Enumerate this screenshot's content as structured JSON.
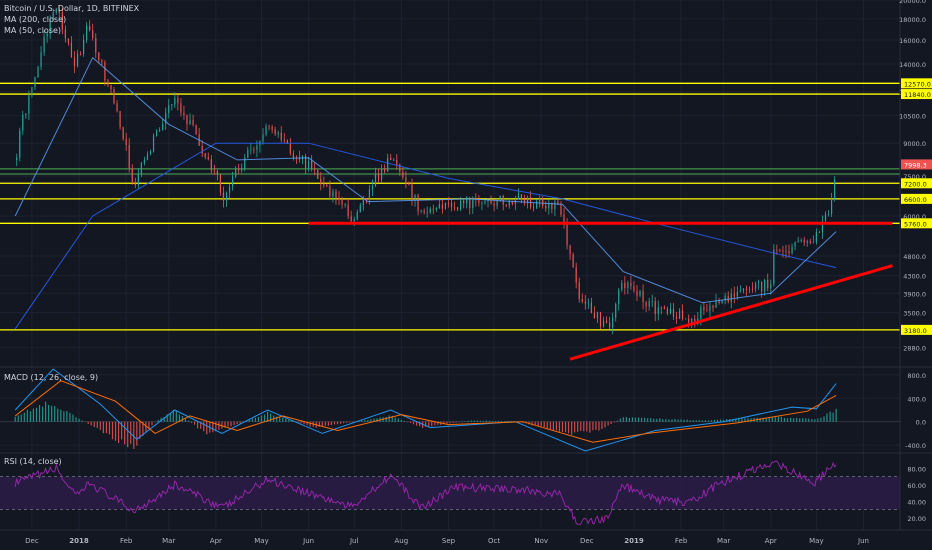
{
  "header": {
    "title": "Bitcoin / U.S. Dollar, 1D, BITFINEX",
    "ma200": "MA (200, close)",
    "ma50": "MA (50, close)",
    "macd": "MACD (12, 26, close, 9)",
    "rsi": "RSI (14, close)"
  },
  "colors": {
    "background": "#131722",
    "up": "#26a69a",
    "down": "#ef5350",
    "level": "#ffff00",
    "trend": "#ff0000",
    "green_level": "#4caf50",
    "ma": "#2962ff",
    "rsi_band": "#2a1c46",
    "rsi_line": "#9c27b0"
  },
  "chart_data": [
    {
      "type": "candlestick",
      "title": "Bitcoin / U.S. Dollar, 1D, BITFINEX",
      "scale": "log",
      "ylim": [
        2600,
        20000
      ],
      "y_ticks": [
        20000,
        18000,
        16000,
        14000,
        12000,
        10500,
        9000,
        7500,
        6000,
        4800,
        4300,
        3900,
        3500,
        2880
      ],
      "x_ticks": [
        "Dec",
        "2018",
        "Feb",
        "Mar",
        "Apr",
        "May",
        "Jun",
        "Jul",
        "Aug",
        "Sep",
        "Oct",
        "Nov",
        "Dec",
        "2019",
        "Feb",
        "Mar",
        "Apr",
        "May",
        "Jun"
      ],
      "price_keypoints": [
        {
          "date": "2017-11-20",
          "close": 8200
        },
        {
          "date": "2017-12-17",
          "close": 19000
        },
        {
          "date": "2017-12-29",
          "close": 13500
        },
        {
          "date": "2018-01-06",
          "close": 17000
        },
        {
          "date": "2018-02-06",
          "close": 7000
        },
        {
          "date": "2018-03-05",
          "close": 11500
        },
        {
          "date": "2018-04-06",
          "close": 6700
        },
        {
          "date": "2018-05-05",
          "close": 9800
        },
        {
          "date": "2018-06-29",
          "close": 5900
        },
        {
          "date": "2018-07-25",
          "close": 8200
        },
        {
          "date": "2018-08-14",
          "close": 6100
        },
        {
          "date": "2018-09-05",
          "close": 6400
        },
        {
          "date": "2018-10-15",
          "close": 6600
        },
        {
          "date": "2018-11-13",
          "close": 6300
        },
        {
          "date": "2018-11-25",
          "close": 3800
        },
        {
          "date": "2018-12-15",
          "close": 3200
        },
        {
          "date": "2018-12-24",
          "close": 4100
        },
        {
          "date": "2019-01-15",
          "close": 3600
        },
        {
          "date": "2019-02-07",
          "close": 3400
        },
        {
          "date": "2019-03-01",
          "close": 3800
        },
        {
          "date": "2019-04-01",
          "close": 4100
        },
        {
          "date": "2019-04-03",
          "close": 4900
        },
        {
          "date": "2019-04-30",
          "close": 5300
        },
        {
          "date": "2019-05-10",
          "close": 6300
        },
        {
          "date": "2019-05-14",
          "close": 7998.3
        }
      ],
      "price_labels": [
        {
          "value": 12570,
          "text": "12570.0",
          "kind": "level"
        },
        {
          "value": 11840,
          "text": "11840.0",
          "kind": "level"
        },
        {
          "value": 7998.3,
          "text": "7998.3",
          "kind": "last"
        },
        {
          "value": 7200,
          "text": "7200.0",
          "kind": "level"
        },
        {
          "value": 6600,
          "text": "6600.0",
          "kind": "level"
        },
        {
          "value": 5760,
          "text": "5760.0",
          "kind": "level"
        },
        {
          "value": 3180,
          "text": "3180.0",
          "kind": "level"
        }
      ],
      "horizontal_levels": [
        12570,
        11840,
        7200,
        6600,
        5760,
        3180
      ],
      "green_levels": [
        7800,
        7580
      ],
      "support_line": {
        "from": {
          "date": "2018-06-01",
          "value": 5760
        },
        "to": {
          "date": "2019-06-20",
          "value": 5760
        }
      },
      "trend_line": {
        "from": {
          "date": "2018-11-20",
          "value": 2700
        },
        "to": {
          "date": "2019-06-20",
          "value": 4550
        }
      },
      "ma200_keypoints": [
        {
          "date": "2017-11-20",
          "value": 3200
        },
        {
          "date": "2018-01-10",
          "value": 6000
        },
        {
          "date": "2018-04-01",
          "value": 9000
        },
        {
          "date": "2018-06-01",
          "value": 9000
        },
        {
          "date": "2018-09-01",
          "value": 7400
        },
        {
          "date": "2018-11-15",
          "value": 6600
        },
        {
          "date": "2019-01-20",
          "value": 5700
        },
        {
          "date": "2019-04-01",
          "value": 4900
        },
        {
          "date": "2019-05-14",
          "value": 4500
        }
      ],
      "ma50_keypoints": [
        {
          "date": "2017-11-20",
          "value": 6000
        },
        {
          "date": "2018-01-10",
          "value": 14500
        },
        {
          "date": "2018-03-01",
          "value": 10000
        },
        {
          "date": "2018-04-15",
          "value": 8200
        },
        {
          "date": "2018-06-01",
          "value": 8300
        },
        {
          "date": "2018-07-10",
          "value": 6500
        },
        {
          "date": "2018-09-15",
          "value": 6600
        },
        {
          "date": "2018-11-15",
          "value": 6400
        },
        {
          "date": "2018-12-25",
          "value": 4400
        },
        {
          "date": "2019-02-15",
          "value": 3700
        },
        {
          "date": "2019-04-01",
          "value": 3900
        },
        {
          "date": "2019-05-14",
          "value": 5500
        }
      ]
    },
    {
      "type": "histogram",
      "title": "MACD (12, 26, close, 9)",
      "ylim": [
        -500,
        900
      ],
      "y_ticks": [
        800.0,
        400.0,
        0.0,
        -400.0
      ],
      "y_tick_labels": [
        "800.0",
        "400.0",
        "0.0",
        "-400.0"
      ],
      "hist_keypoints": [
        {
          "date": "2017-11-20",
          "value": 100
        },
        {
          "date": "2017-12-10",
          "value": 300
        },
        {
          "date": "2017-12-25",
          "value": 150
        },
        {
          "date": "2018-01-15",
          "value": -150
        },
        {
          "date": "2018-02-05",
          "value": -450
        },
        {
          "date": "2018-02-20",
          "value": 0
        },
        {
          "date": "2018-03-05",
          "value": 200
        },
        {
          "date": "2018-03-25",
          "value": -200
        },
        {
          "date": "2018-04-15",
          "value": -50
        },
        {
          "date": "2018-05-05",
          "value": 150
        },
        {
          "date": "2018-06-05",
          "value": -100
        },
        {
          "date": "2018-07-01",
          "value": 0
        },
        {
          "date": "2018-07-25",
          "value": 100
        },
        {
          "date": "2018-08-15",
          "value": -100
        },
        {
          "date": "2018-09-15",
          "value": 20
        },
        {
          "date": "2018-10-15",
          "value": 10
        },
        {
          "date": "2018-11-20",
          "value": -200
        },
        {
          "date": "2018-12-10",
          "value": -150
        },
        {
          "date": "2018-12-25",
          "value": 80
        },
        {
          "date": "2019-02-15",
          "value": 20
        },
        {
          "date": "2019-04-05",
          "value": 80
        },
        {
          "date": "2019-05-01",
          "value": 40
        },
        {
          "date": "2019-05-14",
          "value": 200
        }
      ],
      "macd_keypoints": [
        {
          "date": "2017-11-20",
          "value": 200
        },
        {
          "date": "2017-12-15",
          "value": 900
        },
        {
          "date": "2018-01-15",
          "value": 300
        },
        {
          "date": "2018-02-08",
          "value": -300
        },
        {
          "date": "2018-03-05",
          "value": 200
        },
        {
          "date": "2018-04-05",
          "value": -200
        },
        {
          "date": "2018-05-05",
          "value": 200
        },
        {
          "date": "2018-06-10",
          "value": -200
        },
        {
          "date": "2018-07-25",
          "value": 200
        },
        {
          "date": "2018-08-20",
          "value": -100
        },
        {
          "date": "2018-10-15",
          "value": 0
        },
        {
          "date": "2018-11-30",
          "value": -500
        },
        {
          "date": "2018-12-20",
          "value": -350
        },
        {
          "date": "2019-01-15",
          "value": -150
        },
        {
          "date": "2019-03-01",
          "value": 0
        },
        {
          "date": "2019-04-15",
          "value": 250
        },
        {
          "date": "2019-05-01",
          "value": 220
        },
        {
          "date": "2019-05-14",
          "value": 650
        }
      ],
      "signal_keypoints": [
        {
          "date": "2017-11-20",
          "value": 100
        },
        {
          "date": "2017-12-20",
          "value": 700
        },
        {
          "date": "2018-01-25",
          "value": 350
        },
        {
          "date": "2018-02-20",
          "value": -200
        },
        {
          "date": "2018-03-15",
          "value": 100
        },
        {
          "date": "2018-04-15",
          "value": -150
        },
        {
          "date": "2018-05-15",
          "value": 100
        },
        {
          "date": "2018-06-20",
          "value": -150
        },
        {
          "date": "2018-08-01",
          "value": 120
        },
        {
          "date": "2018-09-01",
          "value": -50
        },
        {
          "date": "2018-10-20",
          "value": 0
        },
        {
          "date": "2018-12-05",
          "value": -350
        },
        {
          "date": "2019-01-10",
          "value": -200
        },
        {
          "date": "2019-03-10",
          "value": -20
        },
        {
          "date": "2019-04-25",
          "value": 180
        },
        {
          "date": "2019-05-14",
          "value": 450
        }
      ]
    },
    {
      "type": "line",
      "title": "RSI (14, close)",
      "ylim": [
        10,
        95
      ],
      "band": [
        30,
        70
      ],
      "y_ticks": [
        80.0,
        60.0,
        40.0,
        20.0
      ],
      "y_tick_labels": [
        "80.00",
        "60.00",
        "40.00",
        "20.00"
      ],
      "rsi_keypoints": [
        {
          "date": "2017-11-20",
          "value": 62
        },
        {
          "date": "2017-12-17",
          "value": 80
        },
        {
          "date": "2017-12-30",
          "value": 45
        },
        {
          "date": "2018-01-08",
          "value": 62
        },
        {
          "date": "2018-02-06",
          "value": 28
        },
        {
          "date": "2018-03-05",
          "value": 60
        },
        {
          "date": "2018-04-06",
          "value": 32
        },
        {
          "date": "2018-05-05",
          "value": 67
        },
        {
          "date": "2018-06-29",
          "value": 33
        },
        {
          "date": "2018-07-25",
          "value": 72
        },
        {
          "date": "2018-08-14",
          "value": 32
        },
        {
          "date": "2018-09-05",
          "value": 57
        },
        {
          "date": "2018-10-15",
          "value": 55
        },
        {
          "date": "2018-11-13",
          "value": 48
        },
        {
          "date": "2018-11-25",
          "value": 14
        },
        {
          "date": "2018-12-15",
          "value": 20
        },
        {
          "date": "2018-12-24",
          "value": 60
        },
        {
          "date": "2019-01-15",
          "value": 42
        },
        {
          "date": "2019-02-07",
          "value": 38
        },
        {
          "date": "2019-02-25",
          "value": 60
        },
        {
          "date": "2019-04-03",
          "value": 88
        },
        {
          "date": "2019-04-30",
          "value": 62
        },
        {
          "date": "2019-05-14",
          "value": 88
        }
      ]
    }
  ]
}
